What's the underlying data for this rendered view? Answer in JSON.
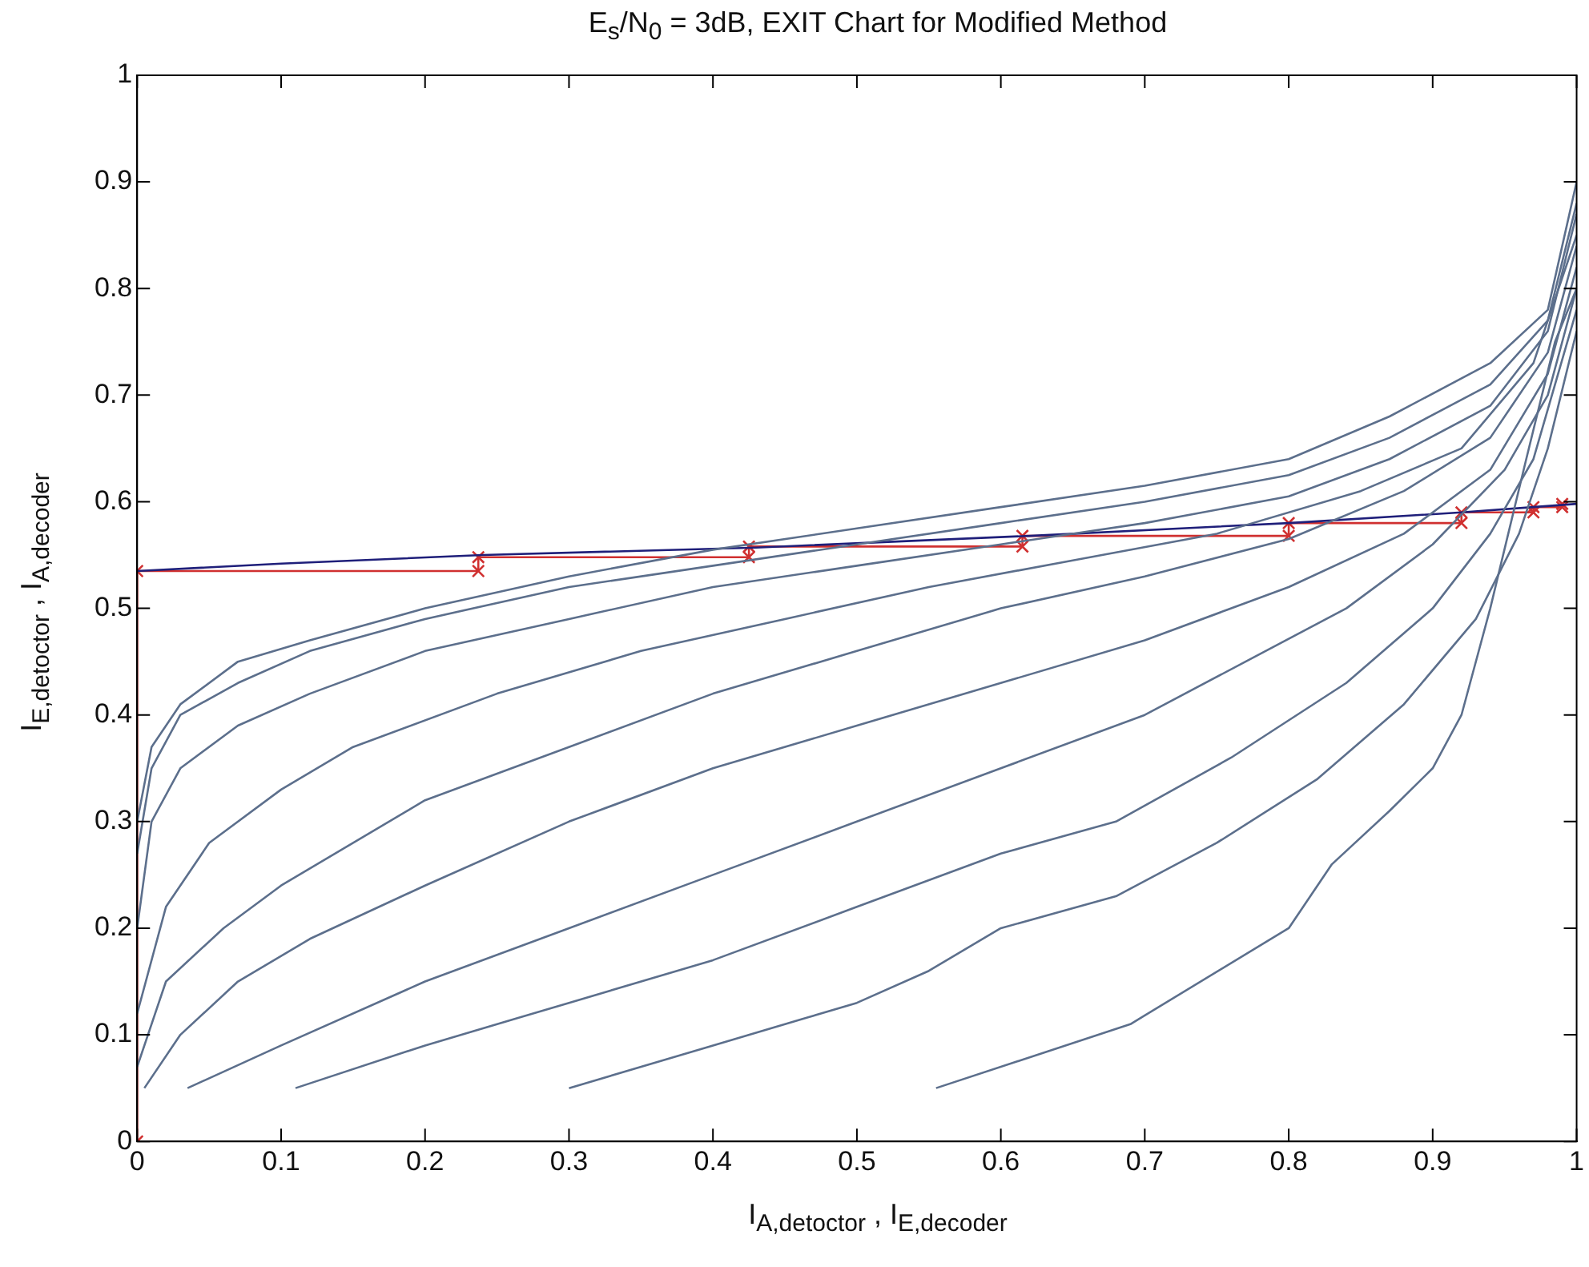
{
  "chart_data": {
    "type": "line",
    "title": "E$_{s}$/N$_{0}$ = 3dB, EXIT Chart for Modified Method",
    "xlabel": "I$_{A,detoctor}$ , I$_{E,decoder}$",
    "ylabel": "I$_{E,detoctor}$ , I$_{A,decoder}$",
    "xlim": [
      0,
      1
    ],
    "ylim": [
      0,
      1
    ],
    "xticks": [
      0,
      0.1,
      0.2,
      0.3,
      0.4,
      0.5,
      0.6,
      0.7,
      0.8,
      0.9,
      1
    ],
    "yticks": [
      0,
      0.1,
      0.2,
      0.3,
      0.4,
      0.5,
      0.6,
      0.7,
      0.8,
      0.9,
      1
    ],
    "grid": false,
    "legend": false,
    "marker": "none",
    "line_style": "solid",
    "series": [
      {
        "color": "#5c6f8c",
        "x": [
          0,
          0.01,
          0.03,
          0.07,
          0.12,
          0.2,
          0.3,
          0.4,
          0.5,
          0.6,
          0.7,
          0.8,
          0.87,
          0.94,
          0.98,
          1
        ],
        "values": [
          0.3,
          0.37,
          0.41,
          0.45,
          0.47,
          0.5,
          0.53,
          0.555,
          0.575,
          0.595,
          0.615,
          0.64,
          0.68,
          0.73,
          0.78,
          0.9
        ]
      },
      {
        "color": "#5c6f8c",
        "x": [
          0,
          0.01,
          0.03,
          0.07,
          0.12,
          0.2,
          0.3,
          0.4,
          0.5,
          0.6,
          0.7,
          0.8,
          0.87,
          0.94,
          0.98,
          1
        ],
        "values": [
          0.27,
          0.35,
          0.4,
          0.43,
          0.46,
          0.49,
          0.52,
          0.54,
          0.56,
          0.58,
          0.6,
          0.625,
          0.66,
          0.71,
          0.77,
          0.88
        ]
      },
      {
        "color": "#5c6f8c",
        "x": [
          0,
          0.01,
          0.03,
          0.07,
          0.12,
          0.2,
          0.3,
          0.4,
          0.5,
          0.6,
          0.7,
          0.8,
          0.87,
          0.94,
          0.98,
          1
        ],
        "values": [
          0.2,
          0.3,
          0.35,
          0.39,
          0.42,
          0.46,
          0.49,
          0.52,
          0.54,
          0.56,
          0.58,
          0.605,
          0.64,
          0.69,
          0.76,
          0.87
        ]
      },
      {
        "color": "#5c6f8c",
        "x": [
          0,
          0.02,
          0.05,
          0.1,
          0.15,
          0.25,
          0.35,
          0.45,
          0.55,
          0.65,
          0.75,
          0.85,
          0.92,
          0.97,
          1
        ],
        "values": [
          0.12,
          0.22,
          0.28,
          0.33,
          0.37,
          0.42,
          0.46,
          0.49,
          0.52,
          0.545,
          0.57,
          0.61,
          0.65,
          0.73,
          0.85
        ]
      },
      {
        "color": "#5c6f8c",
        "x": [
          0,
          0.02,
          0.06,
          0.1,
          0.2,
          0.3,
          0.4,
          0.5,
          0.6,
          0.7,
          0.8,
          0.88,
          0.94,
          0.98,
          1
        ],
        "values": [
          0.07,
          0.15,
          0.2,
          0.24,
          0.32,
          0.37,
          0.42,
          0.46,
          0.5,
          0.53,
          0.565,
          0.61,
          0.66,
          0.74,
          0.84
        ]
      },
      {
        "color": "#5c6f8c",
        "x": [
          0.005,
          0.03,
          0.07,
          0.12,
          0.2,
          0.3,
          0.4,
          0.5,
          0.6,
          0.7,
          0.8,
          0.88,
          0.94,
          0.98,
          1
        ],
        "values": [
          0.05,
          0.1,
          0.15,
          0.19,
          0.24,
          0.3,
          0.35,
          0.39,
          0.43,
          0.47,
          0.52,
          0.57,
          0.63,
          0.72,
          0.82
        ]
      },
      {
        "color": "#5c6f8c",
        "x": [
          0.035,
          0.1,
          0.2,
          0.3,
          0.4,
          0.5,
          0.6,
          0.7,
          0.77,
          0.84,
          0.9,
          0.95,
          0.98,
          1
        ],
        "values": [
          0.05,
          0.09,
          0.15,
          0.2,
          0.25,
          0.3,
          0.35,
          0.4,
          0.45,
          0.5,
          0.56,
          0.63,
          0.7,
          0.8
        ]
      },
      {
        "color": "#5c6f8c",
        "x": [
          0.11,
          0.2,
          0.3,
          0.4,
          0.5,
          0.6,
          0.68,
          0.76,
          0.84,
          0.9,
          0.94,
          0.97,
          1
        ],
        "values": [
          0.05,
          0.09,
          0.13,
          0.17,
          0.22,
          0.27,
          0.3,
          0.36,
          0.43,
          0.5,
          0.57,
          0.64,
          0.78
        ]
      },
      {
        "color": "#5c6f8c",
        "x": [
          0.3,
          0.4,
          0.5,
          0.55,
          0.6,
          0.68,
          0.75,
          0.82,
          0.88,
          0.93,
          0.96,
          0.98,
          1
        ],
        "values": [
          0.05,
          0.09,
          0.13,
          0.16,
          0.2,
          0.23,
          0.28,
          0.34,
          0.41,
          0.49,
          0.57,
          0.65,
          0.76
        ]
      },
      {
        "color": "#5c6f8c",
        "x": [
          0.555,
          0.69,
          0.8,
          0.83,
          0.87,
          0.9,
          0.92,
          0.94,
          0.965,
          0.985,
          1
        ],
        "values": [
          0.05,
          0.11,
          0.2,
          0.26,
          0.31,
          0.35,
          0.4,
          0.5,
          0.64,
          0.75,
          0.8
        ]
      },
      {
        "color": "#1f1f7a",
        "x": [
          0,
          0.1,
          0.24,
          0.43,
          0.62,
          0.8,
          0.92,
          0.97,
          1
        ],
        "values": [
          0.535,
          0.542,
          0.55,
          0.557,
          0.568,
          0.58,
          0.59,
          0.595,
          0.598
        ]
      },
      {
        "color": "#d03030",
        "marker": "cross",
        "x": [
          0,
          0,
          0.237,
          0.237,
          0.425,
          0.425,
          0.615,
          0.615,
          0.8,
          0.8,
          0.92,
          0.92,
          0.97,
          0.97,
          0.99,
          0.99
        ],
        "values": [
          0,
          0.535,
          0.535,
          0.548,
          0.548,
          0.558,
          0.558,
          0.568,
          0.568,
          0.58,
          0.58,
          0.59,
          0.59,
          0.595,
          0.595,
          0.598
        ]
      }
    ]
  }
}
